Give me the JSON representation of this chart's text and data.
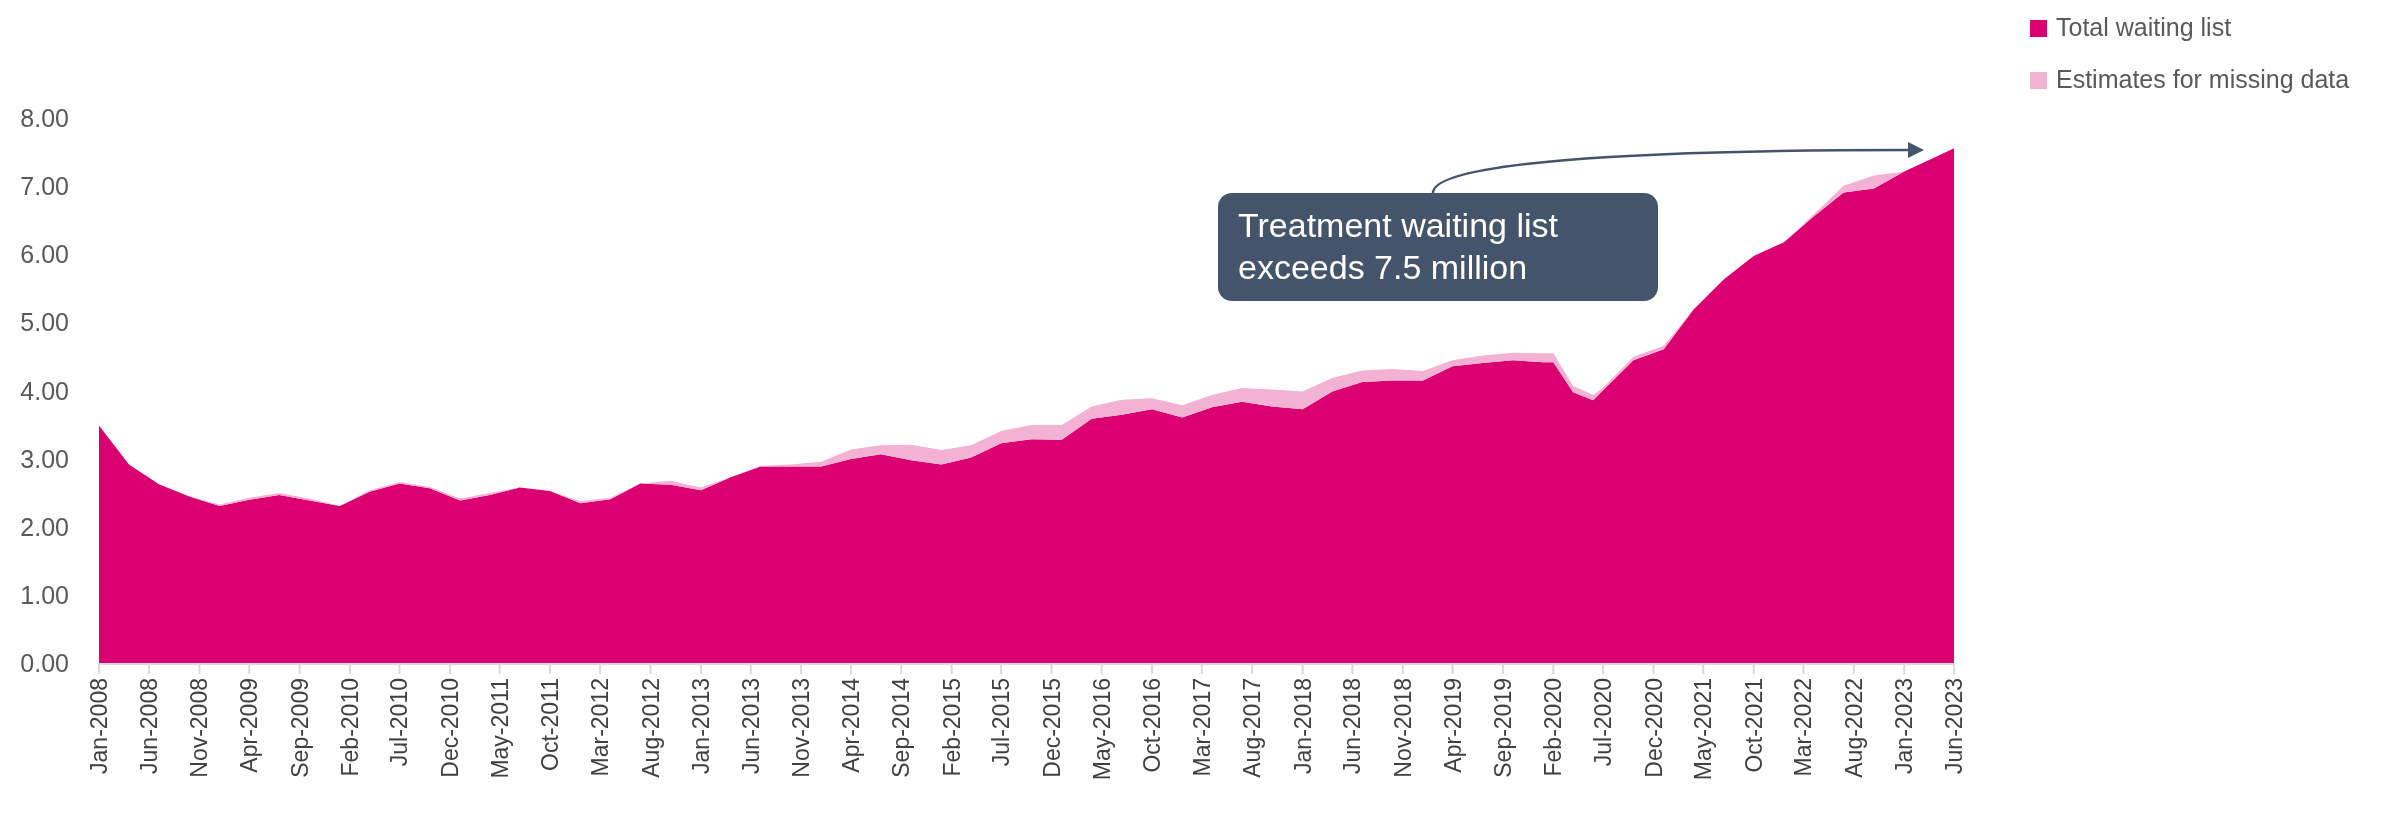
{
  "chart_data": {
    "type": "area",
    "stacked": true,
    "legend": "top right",
    "annotations": [
      "Treatment waiting list exceeds 7.5 million"
    ],
    "x": [
      "2008-01",
      "2008-04",
      "2008-07",
      "2008-10",
      "2009-01",
      "2009-04",
      "2009-07",
      "2009-10",
      "2010-01",
      "2010-04",
      "2010-07",
      "2010-10",
      "2011-01",
      "2011-04",
      "2011-07",
      "2011-10",
      "2012-01",
      "2012-04",
      "2012-07",
      "2012-10",
      "2013-01",
      "2013-04",
      "2013-07",
      "2013-10",
      "2014-01",
      "2014-04",
      "2014-07",
      "2014-10",
      "2015-01",
      "2015-04",
      "2015-07",
      "2015-10",
      "2016-01",
      "2016-04",
      "2016-07",
      "2016-10",
      "2017-01",
      "2017-04",
      "2017-07",
      "2017-10",
      "2018-01",
      "2018-04",
      "2018-07",
      "2018-10",
      "2019-01",
      "2019-04",
      "2019-07",
      "2019-10",
      "2020-01",
      "2020-02",
      "2020-04",
      "2020-06",
      "2020-07",
      "2020-10",
      "2021-01",
      "2021-04",
      "2021-07",
      "2021-10",
      "2022-01",
      "2022-04",
      "2022-07",
      "2022-10",
      "2023-01",
      "2023-04",
      "2023-06"
    ],
    "series": [
      {
        "name": "Total waiting list",
        "color": "#db0072",
        "values": [
          3.5,
          2.93,
          2.64,
          2.46,
          2.32,
          2.41,
          2.48,
          2.4,
          2.32,
          2.53,
          2.65,
          2.58,
          2.4,
          2.48,
          2.59,
          2.54,
          2.36,
          2.42,
          2.65,
          2.63,
          2.55,
          2.74,
          2.9,
          2.9,
          2.9,
          3.01,
          3.08,
          2.99,
          2.93,
          3.03,
          3.24,
          3.3,
          3.29,
          3.6,
          3.66,
          3.74,
          3.62,
          3.77,
          3.85,
          3.78,
          3.74,
          4.0,
          4.14,
          4.16,
          4.16,
          4.37,
          4.42,
          4.46,
          4.43,
          4.43,
          3.99,
          3.87,
          4.02,
          4.46,
          4.62,
          5.2,
          5.64,
          5.99,
          6.19,
          6.57,
          6.92,
          6.98,
          7.23,
          7.43,
          7.57
        ]
      },
      {
        "name": "Estimates for missing data",
        "color": "#f3b1d3",
        "values": [
          0,
          0,
          0,
          0,
          0.02,
          0.03,
          0.03,
          0.03,
          0,
          0.02,
          0.02,
          0.02,
          0.03,
          0.03,
          0,
          0,
          0.03,
          0.02,
          0,
          0.06,
          0.04,
          0,
          0.01,
          0.03,
          0.07,
          0.14,
          0.13,
          0.23,
          0.21,
          0.18,
          0.18,
          0.21,
          0.22,
          0.18,
          0.22,
          0.16,
          0.18,
          0.18,
          0.2,
          0.25,
          0.26,
          0.2,
          0.17,
          0.17,
          0.14,
          0.09,
          0.11,
          0.11,
          0.13,
          0.13,
          0.09,
          0.08,
          0.04,
          0.05,
          0.05,
          0,
          0,
          0,
          0,
          0.03,
          0.1,
          0.19,
          0,
          0,
          0
        ]
      }
    ],
    "xlim": [
      "2008-01",
      "2023-06"
    ],
    "xticks": [
      {
        "value": "2008-01",
        "label": "Jan-2008"
      },
      {
        "value": "2008-06",
        "label": "Jun-2008"
      },
      {
        "value": "2008-11",
        "label": "Nov-2008"
      },
      {
        "value": "2009-04",
        "label": "Apr-2009"
      },
      {
        "value": "2009-09",
        "label": "Sep-2009"
      },
      {
        "value": "2010-02",
        "label": "Feb-2010"
      },
      {
        "value": "2010-07",
        "label": "Jul-2010"
      },
      {
        "value": "2010-12",
        "label": "Dec-2010"
      },
      {
        "value": "2011-05",
        "label": "May-2011"
      },
      {
        "value": "2011-10",
        "label": "Oct-2011"
      },
      {
        "value": "2012-03",
        "label": "Mar-2012"
      },
      {
        "value": "2012-08",
        "label": "Aug-2012"
      },
      {
        "value": "2013-01",
        "label": "Jan-2013"
      },
      {
        "value": "2013-06",
        "label": "Jun-2013"
      },
      {
        "value": "2013-11",
        "label": "Nov-2013"
      },
      {
        "value": "2014-04",
        "label": "Apr-2014"
      },
      {
        "value": "2014-09",
        "label": "Sep-2014"
      },
      {
        "value": "2015-02",
        "label": "Feb-2015"
      },
      {
        "value": "2015-07",
        "label": "Jul-2015"
      },
      {
        "value": "2015-12",
        "label": "Dec-2015"
      },
      {
        "value": "2016-05",
        "label": "May-2016"
      },
      {
        "value": "2016-10",
        "label": "Oct-2016"
      },
      {
        "value": "2017-03",
        "label": "Mar-2017"
      },
      {
        "value": "2017-08",
        "label": "Aug-2017"
      },
      {
        "value": "2018-01",
        "label": "Jan-2018"
      },
      {
        "value": "2018-06",
        "label": "Jun-2018"
      },
      {
        "value": "2018-11",
        "label": "Nov-2018"
      },
      {
        "value": "2019-04",
        "label": "Apr-2019"
      },
      {
        "value": "2019-09",
        "label": "Sep-2019"
      },
      {
        "value": "2020-02",
        "label": "Feb-2020"
      },
      {
        "value": "2020-07",
        "label": "Jul-2020"
      },
      {
        "value": "2020-12",
        "label": "Dec-2020"
      },
      {
        "value": "2021-05",
        "label": "May-2021"
      },
      {
        "value": "2021-10",
        "label": "Oct-2021"
      },
      {
        "value": "2022-03",
        "label": "Mar-2022"
      },
      {
        "value": "2022-08",
        "label": "Aug-2022"
      },
      {
        "value": "2023-01",
        "label": "Jan-2023"
      },
      {
        "value": "2023-06",
        "label": "Jun-2023"
      }
    ],
    "ylim": [
      0,
      8
    ],
    "yticks": [
      {
        "value": 0,
        "label": "0.00"
      },
      {
        "value": 1,
        "label": "1.00"
      },
      {
        "value": 2,
        "label": "2.00"
      },
      {
        "value": 3,
        "label": "3.00"
      },
      {
        "value": 4,
        "label": "4.00"
      },
      {
        "value": 5,
        "label": "5.00"
      },
      {
        "value": 6,
        "label": "6.00"
      },
      {
        "value": 7,
        "label": "7.00"
      },
      {
        "value": 8,
        "label": "8.00"
      }
    ]
  }
}
